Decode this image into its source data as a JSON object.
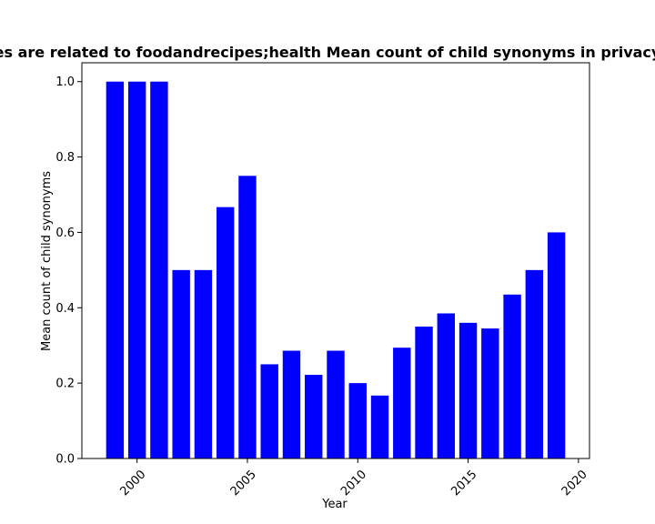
{
  "chart_data": {
    "type": "bar",
    "title": "es are related to foodandrecipes;health Mean count of child synonyms in privacy",
    "xlabel": "Year",
    "ylabel": "Mean count of child synonyms",
    "x": [
      1999,
      2000,
      2001,
      2002,
      2003,
      2004,
      2005,
      2006,
      2007,
      2008,
      2009,
      2010,
      2011,
      2012,
      2013,
      2014,
      2015,
      2016,
      2017,
      2018,
      2019
    ],
    "values": [
      1.0,
      1.0,
      1.0,
      0.5,
      0.5,
      0.667,
      0.75,
      0.25,
      0.286,
      0.222,
      0.286,
      0.2,
      0.167,
      0.294,
      0.35,
      0.385,
      0.36,
      0.345,
      0.435,
      0.5,
      0.6
    ],
    "xlim": [
      1997.5,
      2020.5
    ],
    "ylim": [
      0,
      1.05
    ],
    "xticks": [
      2000,
      2005,
      2010,
      2015,
      2020
    ],
    "xtick_labels": [
      "2000",
      "2005",
      "2010",
      "2015",
      "2020"
    ],
    "yticks": [
      0.0,
      0.2,
      0.4,
      0.6,
      0.8,
      1.0
    ],
    "ytick_labels": [
      "0.0",
      "0.2",
      "0.4",
      "0.6",
      "0.8",
      "1.0"
    ],
    "bar_color": "#0000ff",
    "grid": false,
    "legend": "none"
  }
}
